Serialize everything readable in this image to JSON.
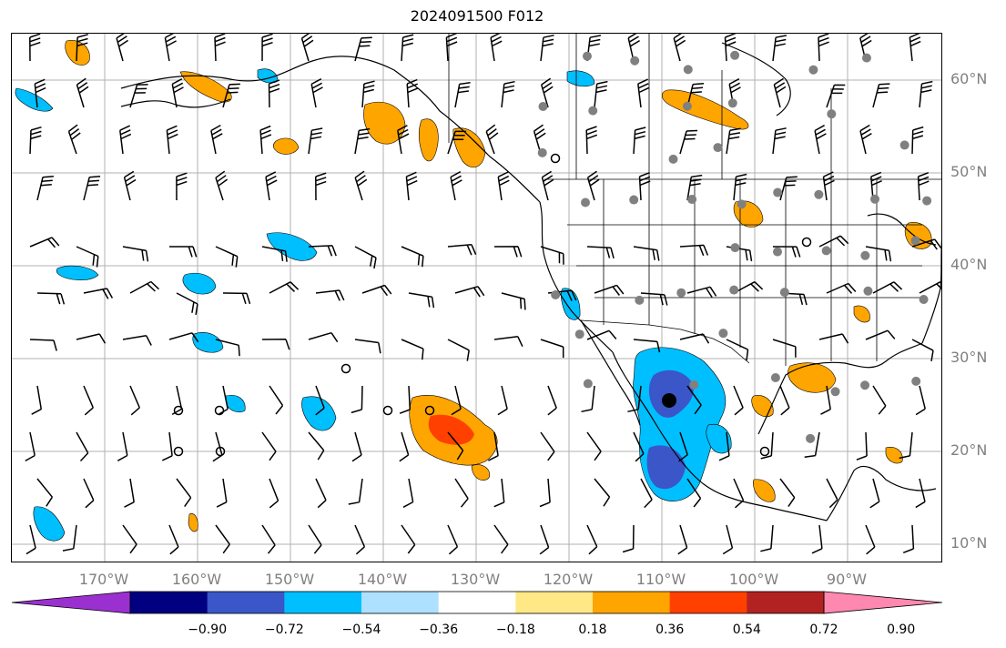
{
  "title": "2024091500 F012",
  "lat_labels": [
    "60°N",
    "50°N",
    "40°N",
    "30°N",
    "20°N",
    "10°N"
  ],
  "lon_labels": [
    "170°W",
    "160°W",
    "150°W",
    "140°W",
    "130°W",
    "120°W",
    "110°W",
    "100°W",
    "90°W"
  ],
  "colorbar": {
    "colors": [
      "#9b30d0",
      "#000080",
      "#3a56c8",
      "#00bfff",
      "#aee0ff",
      "#ffffff",
      "#ffe885",
      "#ffa500",
      "#ff4000",
      "#b22222",
      "#ff88b0"
    ],
    "tick_labels": [
      "−0.90",
      "−0.72",
      "−0.54",
      "−0.36",
      "−0.18",
      "0.18",
      "0.36",
      "0.54",
      "0.72",
      "0.90"
    ]
  },
  "map": {
    "projection": "PlateCarree",
    "extent_lon": [
      -180,
      -80
    ],
    "extent_lat": [
      8,
      65
    ],
    "grid": true,
    "field_colors": {
      "neg_light": "#00bfff",
      "neg_mid": "#3a56c8",
      "pos_light": "#ffa500",
      "pos_mid": "#ff4000"
    },
    "station_dot_color": "#808080"
  }
}
